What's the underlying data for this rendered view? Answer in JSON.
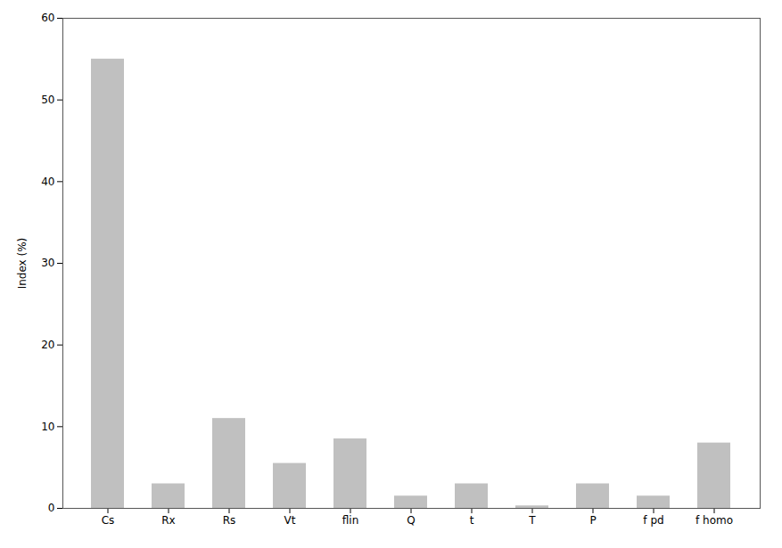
{
  "chart_data": {
    "type": "bar",
    "categories": [
      "Cs",
      "Rx",
      "Rs",
      "Vt",
      "flin",
      "Q",
      "t",
      "T",
      "P",
      "f pd",
      "f homo"
    ],
    "values": [
      55.0,
      3.0,
      11.0,
      5.5,
      8.5,
      1.5,
      3.0,
      0.3,
      3.0,
      1.5,
      8.0
    ],
    "color": "#c0c0c0",
    "ylabel": "Index (%)",
    "ylim": [
      0,
      60
    ],
    "yticks": [
      0,
      10,
      20,
      30,
      40,
      50,
      60
    ],
    "grid": false
  }
}
